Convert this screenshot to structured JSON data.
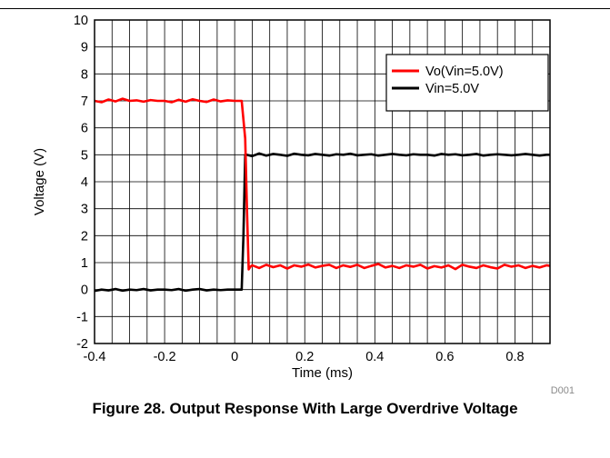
{
  "chart_data": {
    "type": "line",
    "xlabel": "Time (ms)",
    "ylabel": "Voltage (V)",
    "xlim": [
      -0.4,
      0.9
    ],
    "ylim": [
      -2,
      10
    ],
    "x_ticks": [
      -0.4,
      -0.35,
      -0.3,
      -0.25,
      -0.2,
      -0.15,
      -0.1,
      -0.05,
      0,
      0.05,
      0.1,
      0.15,
      0.2,
      0.25,
      0.3,
      0.35,
      0.4,
      0.45,
      0.5,
      0.55,
      0.6,
      0.65,
      0.7,
      0.75,
      0.8,
      0.85,
      0.9
    ],
    "x_tick_labels": [
      {
        "value": -0.4,
        "label": "-0.4"
      },
      {
        "value": -0.2,
        "label": "-0.2"
      },
      {
        "value": 0,
        "label": "0"
      },
      {
        "value": 0.2,
        "label": "0.2"
      },
      {
        "value": 0.4,
        "label": "0.4"
      },
      {
        "value": 0.6,
        "label": "0.6"
      },
      {
        "value": 0.8,
        "label": "0.8"
      }
    ],
    "y_ticks": [
      -2,
      -1,
      0,
      1,
      2,
      3,
      4,
      5,
      6,
      7,
      8,
      9,
      10
    ],
    "grid": true,
    "legend_position": "top-right",
    "series": [
      {
        "name": "Vo(Vin=5.0V)",
        "color": "#ff0000",
        "x": [
          -0.4,
          -0.38,
          -0.36,
          -0.34,
          -0.32,
          -0.3,
          -0.28,
          -0.26,
          -0.24,
          -0.22,
          -0.2,
          -0.18,
          -0.16,
          -0.14,
          -0.12,
          -0.1,
          -0.08,
          -0.06,
          -0.04,
          -0.02,
          0.0,
          0.02,
          0.03,
          0.035,
          0.04,
          0.045,
          0.05,
          0.07,
          0.09,
          0.11,
          0.13,
          0.15,
          0.17,
          0.19,
          0.21,
          0.23,
          0.25,
          0.27,
          0.29,
          0.31,
          0.33,
          0.35,
          0.37,
          0.39,
          0.41,
          0.43,
          0.45,
          0.47,
          0.49,
          0.51,
          0.53,
          0.55,
          0.57,
          0.59,
          0.61,
          0.63,
          0.65,
          0.67,
          0.69,
          0.71,
          0.73,
          0.75,
          0.77,
          0.79,
          0.81,
          0.83,
          0.85,
          0.87,
          0.89,
          0.9
        ],
        "y": [
          7.0,
          6.95,
          7.05,
          6.98,
          7.08,
          7.0,
          7.02,
          6.97,
          7.03,
          7.0,
          7.0,
          6.95,
          7.04,
          6.97,
          7.06,
          7.0,
          6.96,
          7.05,
          6.98,
          7.02,
          7.0,
          7.0,
          5.6,
          3.0,
          0.75,
          0.85,
          0.9,
          0.8,
          0.92,
          0.83,
          0.9,
          0.78,
          0.9,
          0.85,
          0.93,
          0.82,
          0.88,
          0.92,
          0.8,
          0.9,
          0.84,
          0.92,
          0.8,
          0.88,
          0.95,
          0.82,
          0.88,
          0.8,
          0.9,
          0.85,
          0.92,
          0.78,
          0.87,
          0.82,
          0.9,
          0.76,
          0.92,
          0.85,
          0.8,
          0.9,
          0.83,
          0.78,
          0.92,
          0.85,
          0.9,
          0.8,
          0.88,
          0.82,
          0.9,
          0.88
        ]
      },
      {
        "name": "Vin=5.0V",
        "color": "#000000",
        "x": [
          -0.4,
          -0.38,
          -0.36,
          -0.34,
          -0.32,
          -0.3,
          -0.28,
          -0.26,
          -0.24,
          -0.22,
          -0.2,
          -0.18,
          -0.16,
          -0.14,
          -0.12,
          -0.1,
          -0.08,
          -0.06,
          -0.04,
          -0.02,
          0.0,
          0.02,
          0.025,
          0.03,
          0.035,
          0.05,
          0.07,
          0.09,
          0.11,
          0.13,
          0.15,
          0.17,
          0.19,
          0.21,
          0.23,
          0.25,
          0.27,
          0.29,
          0.31,
          0.33,
          0.35,
          0.37,
          0.39,
          0.41,
          0.43,
          0.45,
          0.47,
          0.49,
          0.51,
          0.53,
          0.55,
          0.57,
          0.59,
          0.61,
          0.63,
          0.65,
          0.67,
          0.69,
          0.71,
          0.73,
          0.75,
          0.77,
          0.79,
          0.81,
          0.83,
          0.85,
          0.87,
          0.89,
          0.9
        ],
        "y": [
          -0.05,
          0.0,
          -0.03,
          0.02,
          -0.04,
          0.0,
          -0.02,
          0.02,
          -0.03,
          0.0,
          0.0,
          -0.02,
          0.02,
          -0.04,
          0.0,
          0.02,
          -0.03,
          0.0,
          -0.02,
          0.0,
          0.0,
          0.0,
          2.0,
          5.0,
          5.0,
          4.95,
          5.05,
          4.97,
          5.03,
          5.0,
          4.96,
          5.04,
          5.0,
          4.98,
          5.03,
          5.0,
          4.97,
          5.02,
          5.0,
          5.04,
          4.98,
          5.0,
          5.02,
          4.97,
          5.0,
          5.03,
          5.0,
          4.98,
          5.02,
          5.0,
          5.0,
          4.97,
          5.03,
          5.0,
          5.02,
          4.98,
          5.0,
          5.03,
          4.97,
          5.0,
          5.02,
          5.0,
          4.98,
          5.0,
          5.03,
          5.0,
          4.97,
          5.0,
          5.0
        ]
      }
    ]
  },
  "figure_id": "D001",
  "caption": "Figure 28. Output Response With Large Overdrive Voltage"
}
